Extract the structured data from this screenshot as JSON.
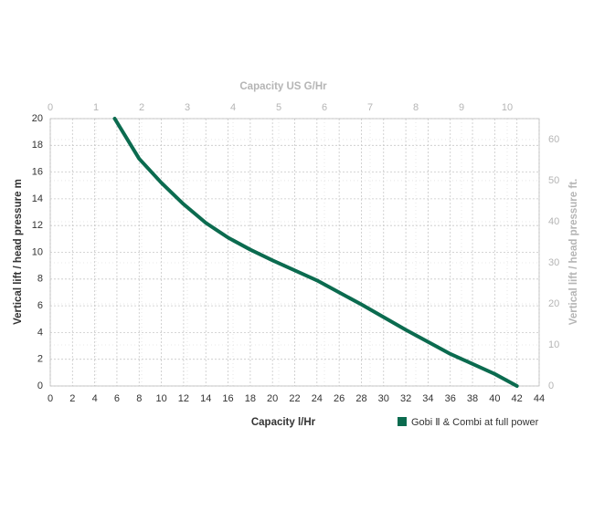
{
  "chart_data": {
    "type": "line",
    "x_label": "Capacity l/Hr",
    "x2_label": "Capacity US G/Hr",
    "y_label": "Vertical lift / head pressure m",
    "y2_label": "Vertical lift / head pressure ft.",
    "x": [
      5.8,
      8,
      10,
      12,
      14,
      16,
      18,
      20,
      24,
      28,
      32,
      36,
      40,
      42
    ],
    "series": [
      {
        "name": "Gobi Ⅱ & Combi at full power",
        "color": "#0b6b4f",
        "values": [
          20,
          17,
          15.2,
          13.6,
          12.2,
          11.1,
          10.2,
          9.4,
          7.9,
          6.1,
          4.2,
          2.4,
          0.9,
          0
        ]
      }
    ],
    "xlim": [
      0,
      44
    ],
    "xticks": [
      0,
      2,
      4,
      6,
      8,
      10,
      12,
      14,
      16,
      18,
      20,
      22,
      24,
      26,
      28,
      30,
      32,
      34,
      36,
      38,
      40,
      42,
      44
    ],
    "ylim": [
      0,
      20
    ],
    "yticks": [
      0,
      2,
      4,
      6,
      8,
      10,
      12,
      14,
      16,
      18,
      20
    ],
    "x2lim": [
      0,
      10.7
    ],
    "x2ticks": [
      0,
      1,
      2,
      3,
      4,
      5,
      6,
      7,
      8,
      9,
      10
    ],
    "y2lim": [
      0,
      65.1
    ],
    "y2ticks": [
      0,
      10,
      20,
      30,
      40,
      50,
      60
    ],
    "grid": true
  }
}
